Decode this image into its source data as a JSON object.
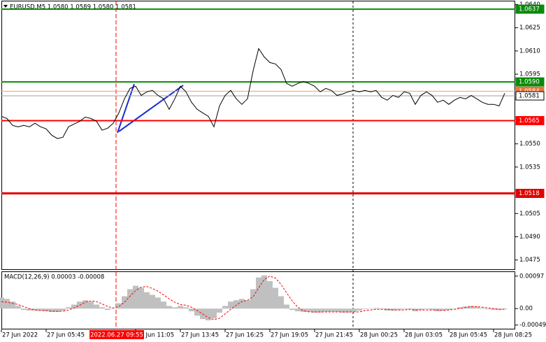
{
  "chart_data": [
    {
      "type": "line",
      "title": "EURUSD,M5 1.0580 1.0589 1.0580 1.0581",
      "color": "#000000",
      "categories": [
        "27 Jun 2022",
        null,
        null,
        null,
        null,
        null,
        null,
        null,
        "27 Jun 05:45",
        null,
        null,
        null,
        null,
        null,
        null,
        null,
        null,
        null,
        null,
        null,
        null,
        null,
        null,
        null,
        "27 Jun 11:05",
        null,
        null,
        null,
        null,
        null,
        null,
        null,
        "27 Jun 13:45",
        null,
        null,
        null,
        null,
        null,
        null,
        null,
        "27 Jun 16:25",
        null,
        null,
        null,
        null,
        null,
        null,
        null,
        "27 Jun 19:05",
        null,
        null,
        null,
        null,
        null,
        null,
        null,
        "27 Jun 21:45",
        null,
        null,
        null,
        null,
        null,
        null,
        null,
        "28 Jun 00:25",
        null,
        null,
        null,
        null,
        null,
        null,
        null,
        "28 Jun 03:05",
        null,
        null,
        null,
        null,
        null,
        null,
        null,
        "28 Jun 05:45",
        null,
        null,
        null,
        null,
        null,
        null,
        null,
        "28 Jun 08:25",
        null,
        null
      ],
      "values": [
        1.05678,
        1.05664,
        1.05619,
        1.0561,
        1.05619,
        1.0561,
        1.05633,
        1.0561,
        1.05597,
        1.05556,
        1.05534,
        1.05543,
        1.0561,
        1.05628,
        1.05646,
        1.05673,
        1.05664,
        1.05646,
        1.05588,
        1.05601,
        1.05633,
        1.057,
        1.05791,
        1.05858,
        1.05872,
        1.05813,
        1.05836,
        1.05845,
        1.05813,
        1.05791,
        1.05723,
        1.05791,
        1.05872,
        1.05836,
        1.05768,
        1.05723,
        1.057,
        1.05678,
        1.0561,
        1.05745,
        1.05813,
        1.05845,
        1.05791,
        1.05755,
        1.05791,
        1.05971,
        1.06115,
        1.06061,
        1.06025,
        1.06016,
        1.0598,
        1.0589,
        1.05872,
        1.0589,
        1.05903,
        1.0589,
        1.05872,
        1.05836,
        1.05858,
        1.05845,
        1.05813,
        1.05822,
        1.05836,
        1.05845,
        1.05836,
        1.05845,
        1.05836,
        1.05845,
        1.058,
        1.05782,
        1.05813,
        1.058,
        1.05836,
        1.05827,
        1.05755,
        1.05813,
        1.05836,
        1.05813,
        1.05768,
        1.05782,
        1.05755,
        1.05782,
        1.058,
        1.05791,
        1.05813,
        1.05791,
        1.05768,
        1.05755,
        1.05755,
        1.05745,
        1.05827
      ],
      "ylim": [
        1.0469,
        1.0642
      ],
      "yticks": [
        {
          "value": 1.064,
          "label": "1.0640"
        },
        1.0625,
        {
          "value": 1.061,
          "label": "1.0610"
        },
        1.0595,
        {
          "value": 1.055,
          "label": "1.0550"
        },
        1.0535,
        1.0505,
        {
          "value": 1.049,
          "label": "1.0490"
        },
        1.0475
      ],
      "levels": [
        {
          "value": 1.0637,
          "color": "#0a8a0a",
          "box": "#0a8a0a"
        },
        {
          "value": 1.059,
          "label": "1.0590",
          "color": "#0a8a0a",
          "box": "#0a8a0a"
        },
        {
          "value": 1.0584,
          "color": "#e8a080",
          "box": "#e8743c"
        },
        {
          "value": 1.0581,
          "color": "#a0a0a0",
          "box": "#ffffff"
        },
        {
          "value": 1.0565,
          "color": "#ff0000",
          "box": "#ff0000"
        },
        {
          "value": 1.0518,
          "color": "#e00000",
          "box": "#e00000"
        }
      ],
      "crosshair_label": "2022.06.27 09:55"
    },
    {
      "type": "macd",
      "title": "MACD(12,26,9) 0.00003 -0.00008",
      "ylim": [
        -0.0006,
        0.00109
      ],
      "yticks": [
        0.00097,
        {
          "value": 0,
          "label": "0.00"
        },
        -0.00049
      ],
      "series": [
        {
          "type": "bar",
          "color": "#c0c0c0",
          "values": [
            0.00033,
            0.00029,
            0.00021,
            8e-05,
            -4e-05,
            -6e-05,
            -6e-05,
            -6e-05,
            -8e-05,
            -0.0001,
            -0.0001,
            -6e-05,
            4e-05,
            0.00012,
            0.00021,
            0.00025,
            0.00021,
            0.00012,
            4e-05,
            -4e-05,
            0,
            0.00016,
            0.00037,
            0.00058,
            0.00068,
            0.00062,
            0.00049,
            0.00041,
            0.00033,
            0.00021,
            8e-05,
            4e-05,
            8e-05,
            4e-05,
            -8e-05,
            -0.00021,
            -0.00031,
            -0.00035,
            -0.00029,
            -0.00012,
            8e-05,
            0.00021,
            0.00025,
            0.00029,
            0.00025,
            0.00058,
            0.00093,
            0.00099,
            0.00082,
            0.00062,
            0.00037,
            0.00012,
            -4e-05,
            -8e-05,
            -0.0001,
            -0.0001,
            -0.00012,
            -0.00012,
            -0.0001,
            -0.0001,
            -0.0001,
            -0.00012,
            -0.00012,
            -0.0001,
            -6e-05,
            -2e-05,
            0,
            2e-05,
            -2e-05,
            -6e-05,
            -6e-05,
            -4e-05,
            -2e-05,
            -2e-05,
            -8e-05,
            -4e-05,
            -2e-05,
            -4e-05,
            -8e-05,
            -6e-05,
            -4e-05,
            0,
            4e-05,
            6e-05,
            8e-05,
            6e-05,
            2e-05,
            -2e-05,
            -4e-05,
            -4e-05,
            -2e-05
          ]
        },
        {
          "type": "line",
          "color": "#ff0000",
          "values": [
            0.00021,
            0.00019,
            0.00016,
            0.00012,
            6e-05,
            0,
            -4e-05,
            -6e-05,
            -6e-05,
            -8e-05,
            -8e-05,
            -8e-05,
            -4e-05,
            2e-05,
            0.0001,
            0.00019,
            0.00023,
            0.00021,
            0.00014,
            6e-05,
            2e-05,
            6e-05,
            0.00019,
            0.00037,
            0.00054,
            0.00064,
            0.00066,
            0.0006,
            0.00052,
            0.00041,
            0.00029,
            0.00019,
            0.00012,
            0.0001,
            4e-05,
            -6e-05,
            -0.00016,
            -0.00027,
            -0.00033,
            -0.00029,
            -0.00016,
            -2e-05,
            0.0001,
            0.00021,
            0.00025,
            0.00035,
            0.00062,
            0.00087,
            0.00097,
            0.00091,
            0.00072,
            0.00047,
            0.00023,
            4e-05,
            -6e-05,
            -0.0001,
            -0.0001,
            -0.0001,
            -0.0001,
            -0.0001,
            -0.0001,
            -0.0001,
            -0.0001,
            -0.0001,
            -0.0001,
            -6e-05,
            -4e-05,
            -2e-05,
            -2e-05,
            -2e-05,
            -4e-05,
            -4e-05,
            -4e-05,
            -2e-05,
            -4e-05,
            -4e-05,
            -4e-05,
            -4e-05,
            -4e-05,
            -6e-05,
            -4e-05,
            -2e-05,
            0,
            4e-05,
            6e-05,
            6e-05,
            4e-05,
            2e-05,
            0,
            -2e-05,
            -2e-05
          ]
        }
      ]
    }
  ]
}
